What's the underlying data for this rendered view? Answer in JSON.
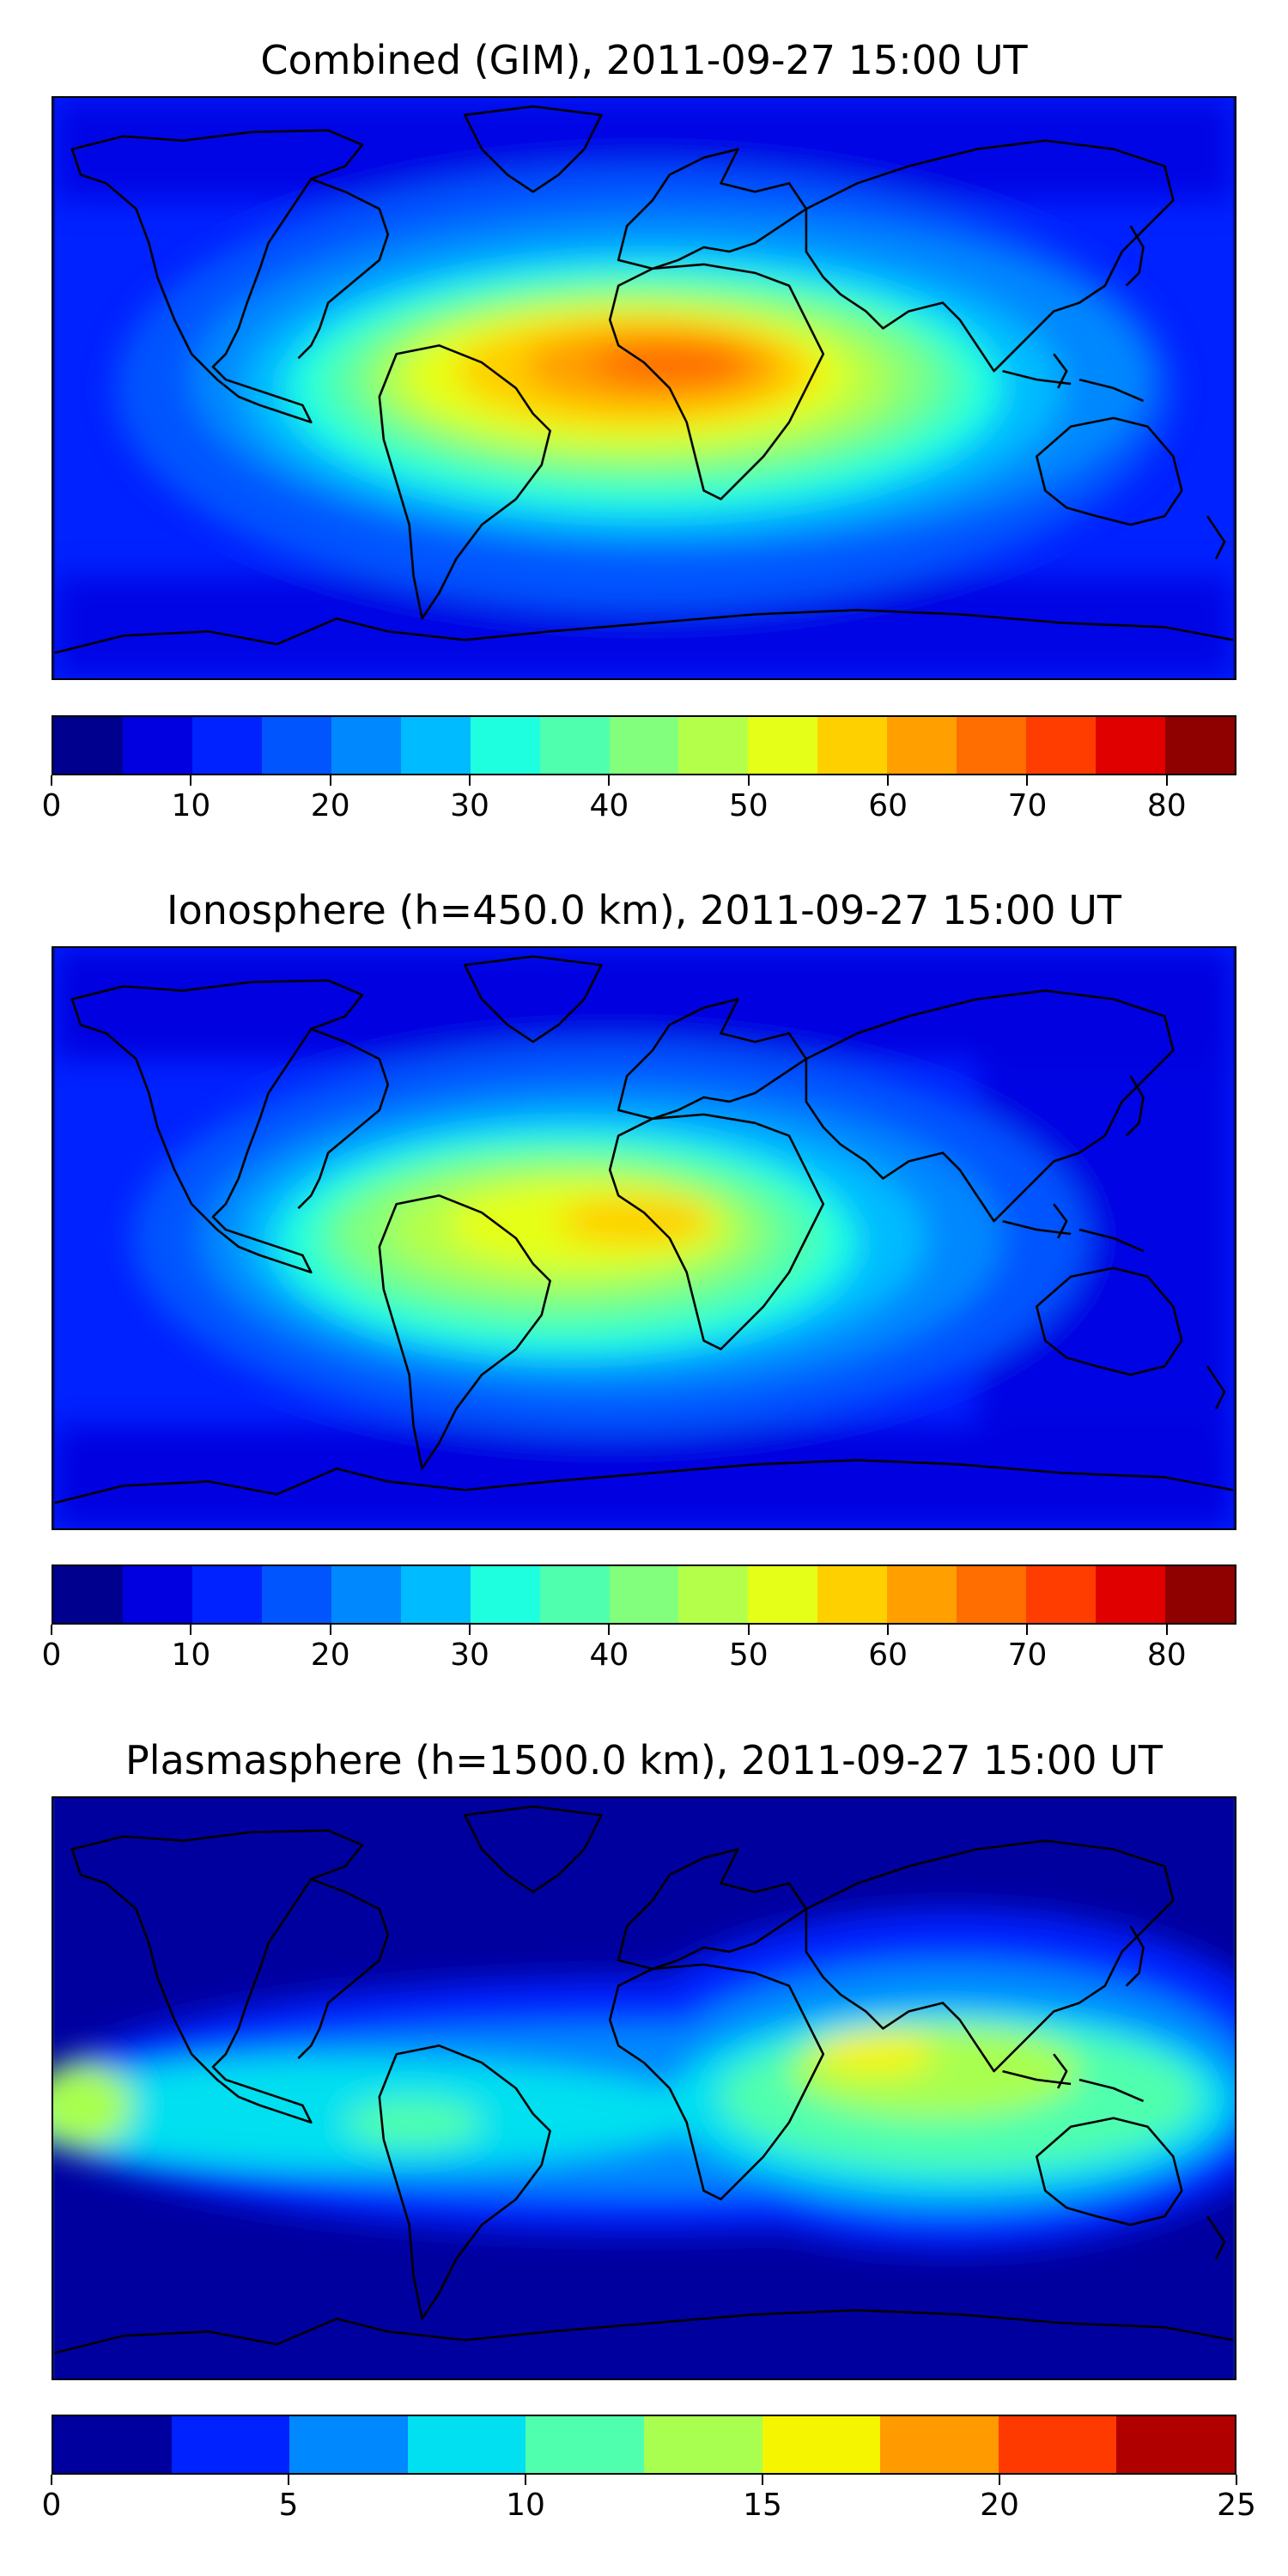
{
  "panels": [
    {
      "title": "Combined (GIM), 2011-09-27 15:00 UT",
      "colorbar": {
        "min": 0,
        "max": 85,
        "step": 5,
        "ticks": [
          "0",
          "10",
          "20",
          "30",
          "40",
          "50",
          "60",
          "70",
          "80"
        ],
        "tick_values": [
          0,
          10,
          20,
          30,
          40,
          50,
          60,
          70,
          80
        ],
        "colors": [
          "#00008f",
          "#0000e0",
          "#0022ff",
          "#0055ff",
          "#0088ff",
          "#00bbff",
          "#1effe0",
          "#50ffae",
          "#82ff7c",
          "#b4ff4a",
          "#e6ff18",
          "#ffd000",
          "#ff9f00",
          "#ff6e00",
          "#ff3d00",
          "#e00000",
          "#8f0000"
        ]
      }
    },
    {
      "title": "Ionosphere  (h=450.0 km), 2011-09-27 15:00 UT",
      "colorbar": {
        "min": 0,
        "max": 85,
        "step": 5,
        "ticks": [
          "0",
          "10",
          "20",
          "30",
          "40",
          "50",
          "60",
          "70",
          "80"
        ],
        "tick_values": [
          0,
          10,
          20,
          30,
          40,
          50,
          60,
          70,
          80
        ],
        "colors": [
          "#00008f",
          "#0000e0",
          "#0022ff",
          "#0055ff",
          "#0088ff",
          "#00bbff",
          "#1effe0",
          "#50ffae",
          "#82ff7c",
          "#b4ff4a",
          "#e6ff18",
          "#ffd000",
          "#ff9f00",
          "#ff6e00",
          "#ff3d00",
          "#e00000",
          "#8f0000"
        ]
      }
    },
    {
      "title": "Plasmasphere (h=1500.0 km), 2011-09-27 15:00 UT",
      "colorbar": {
        "min": 0,
        "max": 25,
        "step": 2.5,
        "ticks": [
          "0",
          "5",
          "10",
          "15",
          "20",
          "25"
        ],
        "tick_values": [
          0,
          5,
          10,
          15,
          20,
          25
        ],
        "colors": [
          "#00009f",
          "#0022ff",
          "#0088ff",
          "#00e0f0",
          "#50ffae",
          "#a8ff50",
          "#f5f500",
          "#ff9a00",
          "#ff3a00",
          "#b00000"
        ]
      }
    }
  ]
}
